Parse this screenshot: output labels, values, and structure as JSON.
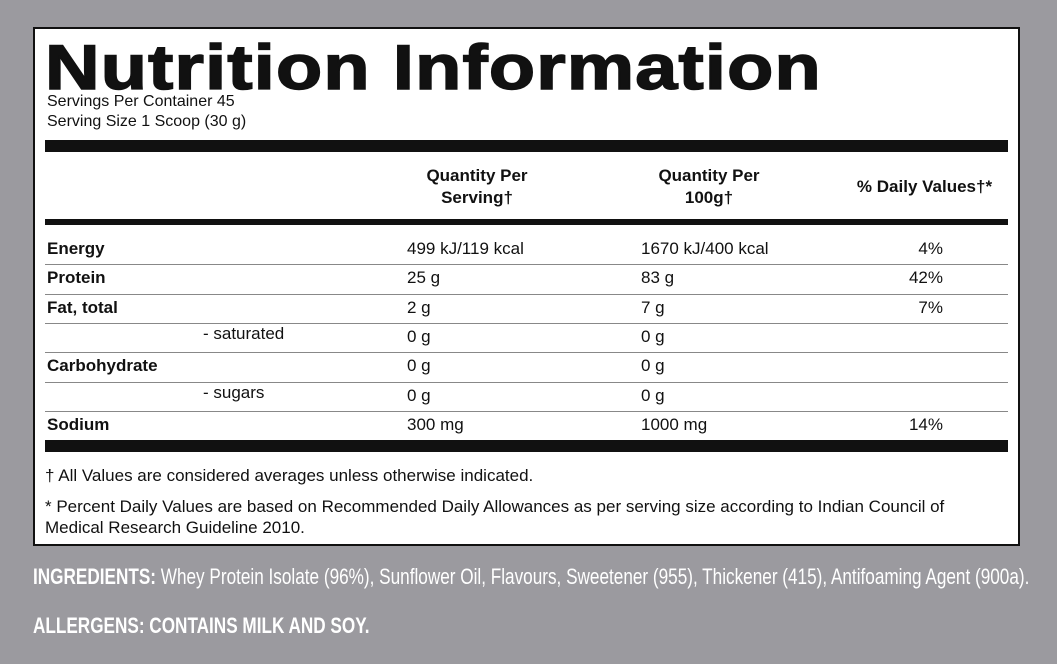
{
  "title": "Nutrition Information",
  "servings": [
    "Servings Per Container 45",
    "Serving Size 1 Scoop (30 g)"
  ],
  "table": {
    "headers": [
      "Quantity Per Serving†",
      "Quantity Per 100g†",
      "% Daily Values†*"
    ],
    "rows": [
      {
        "name": "Energy",
        "serving": "499 kJ/119 kcal",
        "per100g": "1670 kJ/400 kcal",
        "daily": "4%"
      },
      {
        "name": "Protein",
        "serving": "25 g",
        "per100g": "83 g",
        "daily": "42%"
      },
      {
        "name": "Fat, total",
        "serving": "2 g",
        "per100g": "7 g",
        "daily": "7%"
      },
      {
        "sub": "- saturated",
        "serving": "0 g",
        "per100g": "0 g"
      },
      {
        "name": "Carbohydrate",
        "serving": "0 g",
        "per100g": "0 g"
      },
      {
        "sub": "- sugars",
        "serving": "0 g",
        "per100g": "0 g"
      },
      {
        "name": "Sodium",
        "serving": "300 mg",
        "per100g": "1000 mg",
        "daily": "14%"
      }
    ]
  },
  "footnotes": [
    "† All Values are considered averages unless otherwise indicated.",
    "* Percent Daily Values are based on Recommended Daily Allowances as per serving size according to Indian Council of Medical Research Guideline 2010."
  ],
  "ingredients": {
    "label": "INGREDIENTS:",
    "text": "Whey Protein Isolate (96%), Sunflower Oil, Flavours, Sweetener (955), Thickener (415), Antifoaming Agent (900a)."
  },
  "allergens": "ALLERGENS: CONTAINS MILK AND SOY."
}
